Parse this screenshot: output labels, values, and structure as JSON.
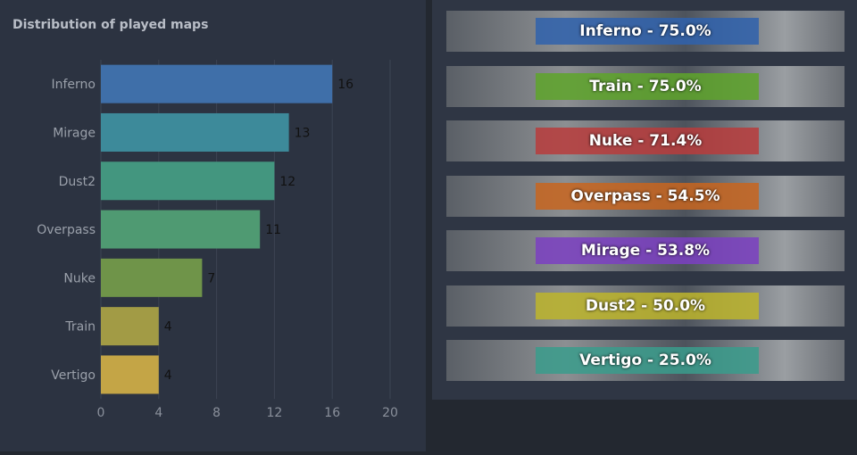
{
  "chart_data": {
    "type": "bar",
    "orientation": "horizontal",
    "title": "Distribution of played maps",
    "categories": [
      "Inferno",
      "Mirage",
      "Dust2",
      "Overpass",
      "Nuke",
      "Train",
      "Vertigo"
    ],
    "values": [
      16,
      13,
      12,
      11,
      7,
      4,
      4
    ],
    "colors": [
      "#3f6fa9",
      "#3d8a9a",
      "#43967f",
      "#4f9a72",
      "#6f9449",
      "#a29b45",
      "#c4a546"
    ],
    "xlim": [
      0,
      20
    ],
    "xticks": [
      0,
      4,
      8,
      12,
      16,
      20
    ],
    "grid": true
  },
  "map_banners": [
    {
      "label": "Inferno - 75.0%",
      "color": "#2f62ad"
    },
    {
      "label": "Train - 75.0%",
      "color": "#5ea42a"
    },
    {
      "label": "Nuke - 71.4%",
      "color": "#b93c3c"
    },
    {
      "label": "Overpass - 54.5%",
      "color": "#c8651f"
    },
    {
      "label": "Mirage - 53.8%",
      "color": "#7b3fc2"
    },
    {
      "label": "Dust2 - 50.0%",
      "color": "#bdb52b"
    },
    {
      "label": "Vertigo - 25.0%",
      "color": "#3a9c8c"
    }
  ]
}
